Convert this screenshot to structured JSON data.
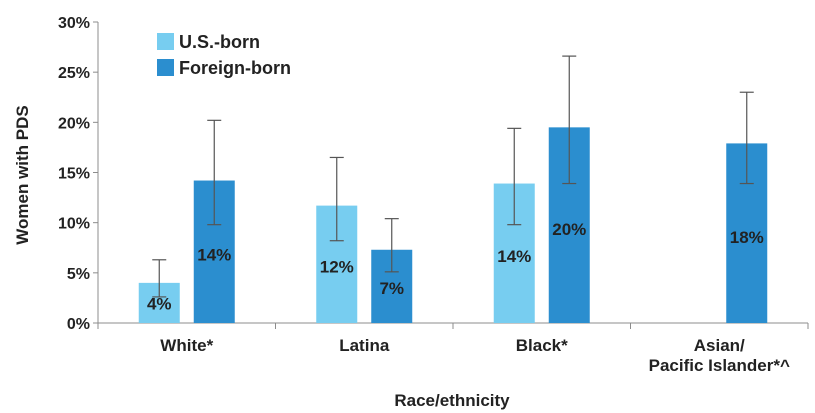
{
  "chart_data": {
    "type": "bar",
    "xlabel": "Race/ethnicity",
    "ylabel": "Women with PDS",
    "ylim": [
      0,
      30
    ],
    "yticks": [
      "0%",
      "5%",
      "10%",
      "15%",
      "20%",
      "25%",
      "30%"
    ],
    "categories": [
      "White*",
      "Latina",
      "Black*",
      "Asian/\nPacific Islander*^"
    ],
    "legend_position": "top-left",
    "grid": false,
    "series": [
      {
        "name": "U.S.-born",
        "color": "#77cdf0",
        "values": [
          4,
          11.7,
          13.9,
          null
        ],
        "labels": [
          "4%",
          "12%",
          "14%",
          null
        ],
        "err_low": [
          2.6,
          8.2,
          9.8,
          null
        ],
        "err_high": [
          6.3,
          16.5,
          19.4,
          null
        ]
      },
      {
        "name": "Foreign-born",
        "color": "#2b8ecf",
        "values": [
          14.2,
          7.3,
          19.5,
          17.9
        ],
        "labels": [
          "14%",
          "7%",
          "20%",
          "18%"
        ],
        "err_low": [
          9.8,
          5.1,
          13.9,
          13.9
        ],
        "err_high": [
          20.2,
          10.4,
          26.6,
          23.0
        ]
      }
    ]
  }
}
